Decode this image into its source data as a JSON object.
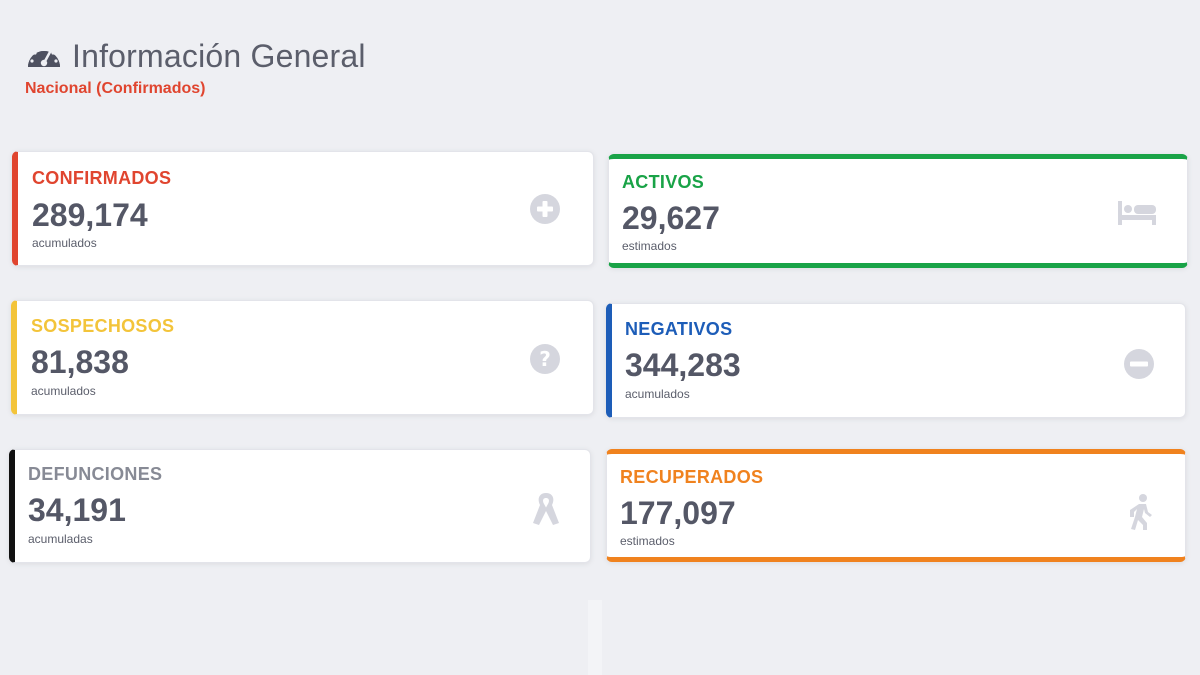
{
  "header": {
    "title": "Información General",
    "subtitle": "Nacional (Confirmados)",
    "subtitle_color": "#e0452f",
    "icon": "tachometer-icon"
  },
  "cards": {
    "confirmados": {
      "label": "CONFIRMADOS",
      "value": "289,174",
      "note": "acumulados",
      "color": "#e0452f",
      "icon": "plus-circle-icon"
    },
    "activos": {
      "label": "ACTIVOS",
      "value": "29,627",
      "note": "estimados",
      "color": "#19a347",
      "icon": "bed-icon"
    },
    "sospechosos": {
      "label": "SOSPECHOSOS",
      "value": "81,838",
      "note": "acumulados",
      "color": "#f3c43a",
      "icon": "question-circle-icon"
    },
    "negativos": {
      "label": "NEGATIVOS",
      "value": "344,283",
      "note": "acumulados",
      "color": "#1d5db8",
      "icon": "minus-circle-icon"
    },
    "defunciones": {
      "label": "DEFUNCIONES",
      "value": "34,191",
      "note": "acumuladas",
      "color": "#111111",
      "label_color": "#878a95",
      "icon": "ribbon-icon"
    },
    "recuperados": {
      "label": "RECUPERADOS",
      "value": "177,097",
      "note": "estimados",
      "color": "#f0821e",
      "icon": "walking-person-icon"
    }
  }
}
